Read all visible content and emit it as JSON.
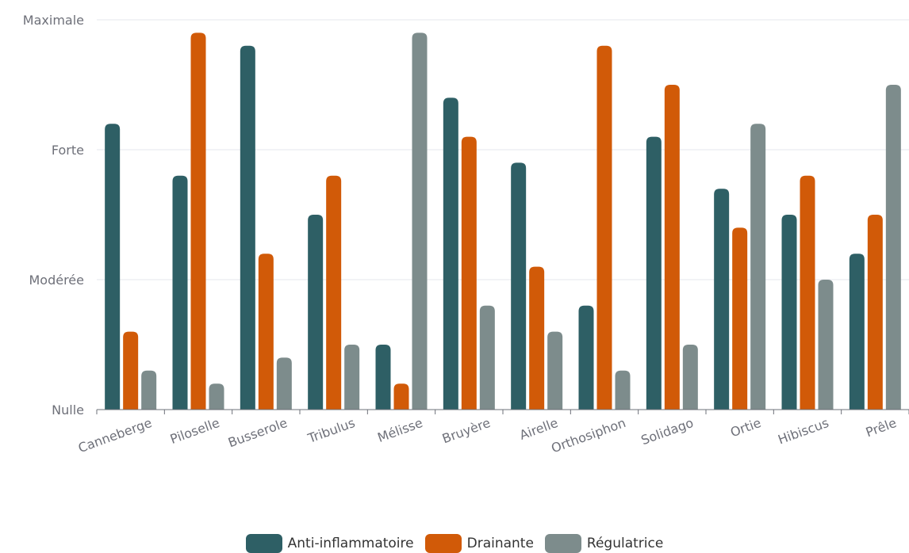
{
  "chart_data": {
    "type": "bar",
    "title": "",
    "xlabel": "",
    "ylabel": "",
    "categories": [
      "Canneberge",
      "Piloselle",
      "Busserole",
      "Tribulus",
      "Mélisse",
      "Bruyère",
      "Airelle",
      "Orthosiphon",
      "Solidago",
      "Ortie",
      "Hibiscus",
      "Prêle"
    ],
    "y_tick_labels": [
      "Nulle",
      "Modérée",
      "Forte",
      "Maximale"
    ],
    "ylim": [
      0,
      3
    ],
    "grid": true,
    "legend_position": "bottom",
    "series": [
      {
        "name": "Anti-inflammatoire",
        "color": "#2e5f65",
        "values": [
          2.2,
          1.8,
          2.8,
          1.5,
          0.5,
          2.4,
          1.9,
          0.8,
          2.1,
          1.7,
          1.5,
          1.2
        ]
      },
      {
        "name": "Drainante",
        "color": "#d15a08",
        "values": [
          0.6,
          2.9,
          1.2,
          1.8,
          0.2,
          2.1,
          1.1,
          2.8,
          2.5,
          1.4,
          1.8,
          1.5
        ]
      },
      {
        "name": "Régulatrice",
        "color": "#7d8c8c",
        "values": [
          0.3,
          0.2,
          0.4,
          0.5,
          2.9,
          0.8,
          0.6,
          0.3,
          0.5,
          2.2,
          1.0,
          2.5
        ]
      }
    ]
  }
}
